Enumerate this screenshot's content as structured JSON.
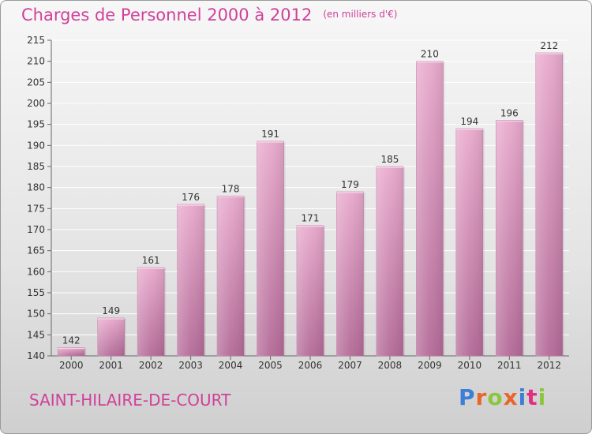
{
  "chart_data": {
    "type": "bar",
    "title": "Charges de Personnel 2000 à 2012",
    "subtitle": "(en milliers d'€)",
    "categories": [
      "2000",
      "2001",
      "2002",
      "2003",
      "2004",
      "2005",
      "2006",
      "2007",
      "2008",
      "2009",
      "2010",
      "2011",
      "2012"
    ],
    "values": [
      142,
      149,
      161,
      176,
      178,
      191,
      171,
      179,
      185,
      210,
      194,
      196,
      212
    ],
    "ylim": [
      140,
      215
    ],
    "yticks": [
      140,
      145,
      150,
      155,
      160,
      165,
      170,
      175,
      180,
      185,
      190,
      195,
      200,
      205,
      210,
      215
    ],
    "xlabel": "",
    "ylabel": "",
    "grid": true,
    "bar_color": "#d97fb0"
  },
  "footer": {
    "town": "SAINT-HILAIRE-DE-COURT",
    "logo": "Proxiti"
  },
  "colors": {
    "accent": "#d0409a",
    "logo_letters": [
      "#3d7fd6",
      "#e8662a",
      "#8cc63f",
      "#e8662a",
      "#3d7fd6",
      "#e03080",
      "#8cc63f"
    ]
  }
}
